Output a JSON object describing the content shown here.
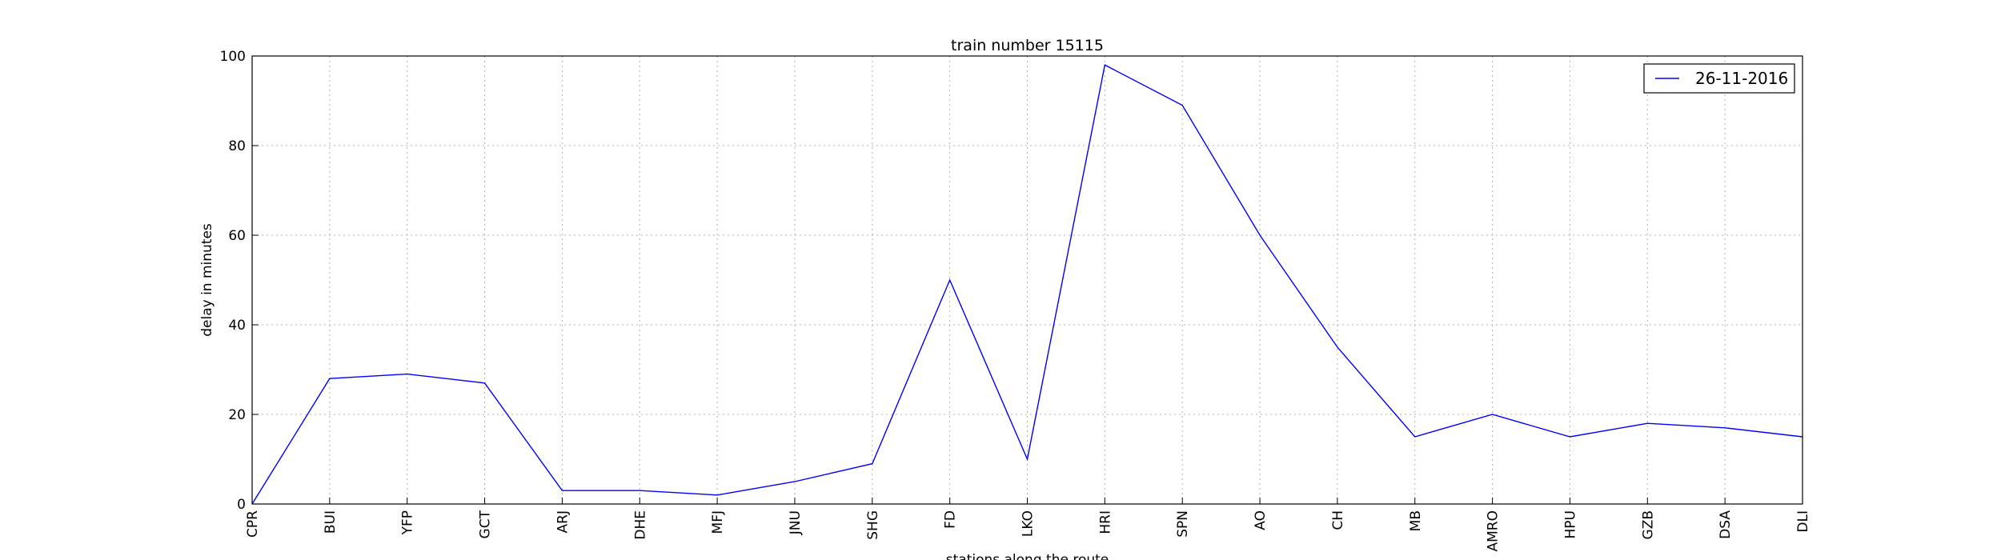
{
  "chart_data": {
    "type": "line",
    "title": "train number 15115",
    "xlabel": "stations along the route",
    "ylabel": "delay in minutes",
    "categories": [
      "CPR",
      "BUI",
      "YFP",
      "GCT",
      "ARJ",
      "DHE",
      "MFJ",
      "JNU",
      "SHG",
      "FD",
      "LKO",
      "HRI",
      "SPN",
      "AO",
      "CH",
      "MB",
      "AMRO",
      "HPU",
      "GZB",
      "DSA",
      "DLI"
    ],
    "series": [
      {
        "name": "26-11-2016",
        "color": "#0000ff",
        "values": [
          0,
          28,
          29,
          27,
          3,
          3,
          2,
          5,
          9,
          50,
          10,
          98,
          89,
          60,
          35,
          15,
          20,
          15,
          18,
          17,
          15
        ]
      }
    ],
    "ylim": [
      0,
      100
    ],
    "yticks": [
      "0",
      "20",
      "40",
      "60",
      "80",
      "100"
    ],
    "grid": true,
    "legend_position": "top-right"
  }
}
